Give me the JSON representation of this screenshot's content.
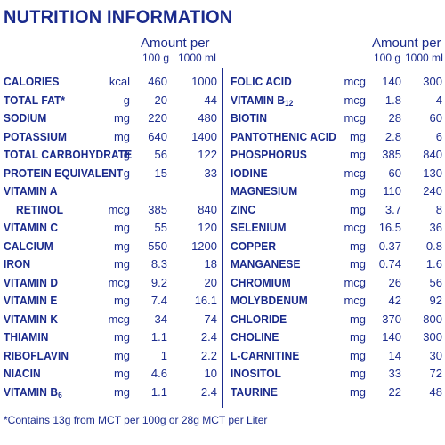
{
  "title": "NUTRITION INFORMATION",
  "left": {
    "amount_per": "Amount per",
    "col1": "100 g",
    "col2": "1000 mL",
    "rows": [
      {
        "label": "CALORIES",
        "unit": "kcal",
        "v1": "460",
        "v2": "1000"
      },
      {
        "label": "TOTAL FAT*",
        "unit": "g",
        "v1": "20",
        "v2": "44"
      },
      {
        "label": "SODIUM",
        "unit": "mg",
        "v1": "220",
        "v2": "480"
      },
      {
        "label": "POTASSIUM",
        "unit": "mg",
        "v1": "640",
        "v2": "1400"
      },
      {
        "label": "TOTAL CARBOHYDRATE",
        "unit": "g",
        "v1": "56",
        "v2": "122"
      },
      {
        "label": "PROTEIN EQUIVALENT",
        "unit": "g",
        "v1": "15",
        "v2": "33"
      },
      {
        "label": "VITAMIN A",
        "unit": "",
        "v1": "",
        "v2": ""
      },
      {
        "label": "RETINOL",
        "unit": "mcg",
        "v1": "385",
        "v2": "840",
        "indent": true
      },
      {
        "label": "VITAMIN C",
        "unit": "mg",
        "v1": "55",
        "v2": "120"
      },
      {
        "label": "CALCIUM",
        "unit": "mg",
        "v1": "550",
        "v2": "1200"
      },
      {
        "label": "IRON",
        "unit": "mg",
        "v1": "8.3",
        "v2": "18"
      },
      {
        "label": "VITAMIN D",
        "unit": "mcg",
        "v1": "9.2",
        "v2": "20"
      },
      {
        "label": "VITAMIN E",
        "unit": "mg",
        "v1": "7.4",
        "v2": "16.1"
      },
      {
        "label": "VITAMIN K",
        "unit": "mcg",
        "v1": "34",
        "v2": "74"
      },
      {
        "label": "THIAMIN",
        "unit": "mg",
        "v1": "1.1",
        "v2": "2.4"
      },
      {
        "label": "RIBOFLAVIN",
        "unit": "mg",
        "v1": "1",
        "v2": "2.2"
      },
      {
        "label": "NIACIN",
        "unit": "mg",
        "v1": "4.6",
        "v2": "10"
      },
      {
        "label": "VITAMIN B",
        "label_sub": "6",
        "unit": "mg",
        "v1": "1.1",
        "v2": "2.4"
      }
    ]
  },
  "right": {
    "amount_per": "Amount per",
    "col1": "100 g",
    "col2": "1000 mL",
    "rows": [
      {
        "label": "FOLIC ACID",
        "unit": "mcg",
        "v1": "140",
        "v2": "300"
      },
      {
        "label": "VITAMIN B",
        "label_sub": "12",
        "unit": "mcg",
        "v1": "1.8",
        "v2": "4"
      },
      {
        "label": "BIOTIN",
        "unit": "mcg",
        "v1": "28",
        "v2": "60"
      },
      {
        "label": "PANTOTHENIC ACID",
        "unit": "mg",
        "v1": "2.8",
        "v2": "6"
      },
      {
        "label": "PHOSPHORUS",
        "unit": "mg",
        "v1": "385",
        "v2": "840"
      },
      {
        "label": "IODINE",
        "unit": "mcg",
        "v1": "60",
        "v2": "130"
      },
      {
        "label": "MAGNESIUM",
        "unit": "mg",
        "v1": "110",
        "v2": "240"
      },
      {
        "label": "ZINC",
        "unit": "mg",
        "v1": "3.7",
        "v2": "8"
      },
      {
        "label": "SELENIUM",
        "unit": "mcg",
        "v1": "16.5",
        "v2": "36"
      },
      {
        "label": "COPPER",
        "unit": "mg",
        "v1": "0.37",
        "v2": "0.8"
      },
      {
        "label": "MANGANESE",
        "unit": "mg",
        "v1": "0.74",
        "v2": "1.6"
      },
      {
        "label": "CHROMIUM",
        "unit": "mcg",
        "v1": "26",
        "v2": "56"
      },
      {
        "label": "MOLYBDENUM",
        "unit": "mcg",
        "v1": "42",
        "v2": "92"
      },
      {
        "label": "CHLORIDE",
        "unit": "mg",
        "v1": "370",
        "v2": "800"
      },
      {
        "label": "CHOLINE",
        "unit": "mg",
        "v1": "140",
        "v2": "300"
      },
      {
        "label": "L-CARNITINE",
        "unit": "mg",
        "v1": "14",
        "v2": "30"
      },
      {
        "label": "INOSITOL",
        "unit": "mg",
        "v1": "33",
        "v2": "72"
      },
      {
        "label": "TAURINE",
        "unit": "mg",
        "v1": "22",
        "v2": "48"
      }
    ]
  },
  "footnote": "*Contains 13g from MCT per 100g or 28g MCT per Liter",
  "colors": {
    "text": "#1a2a8c",
    "background": "#ffffff"
  }
}
